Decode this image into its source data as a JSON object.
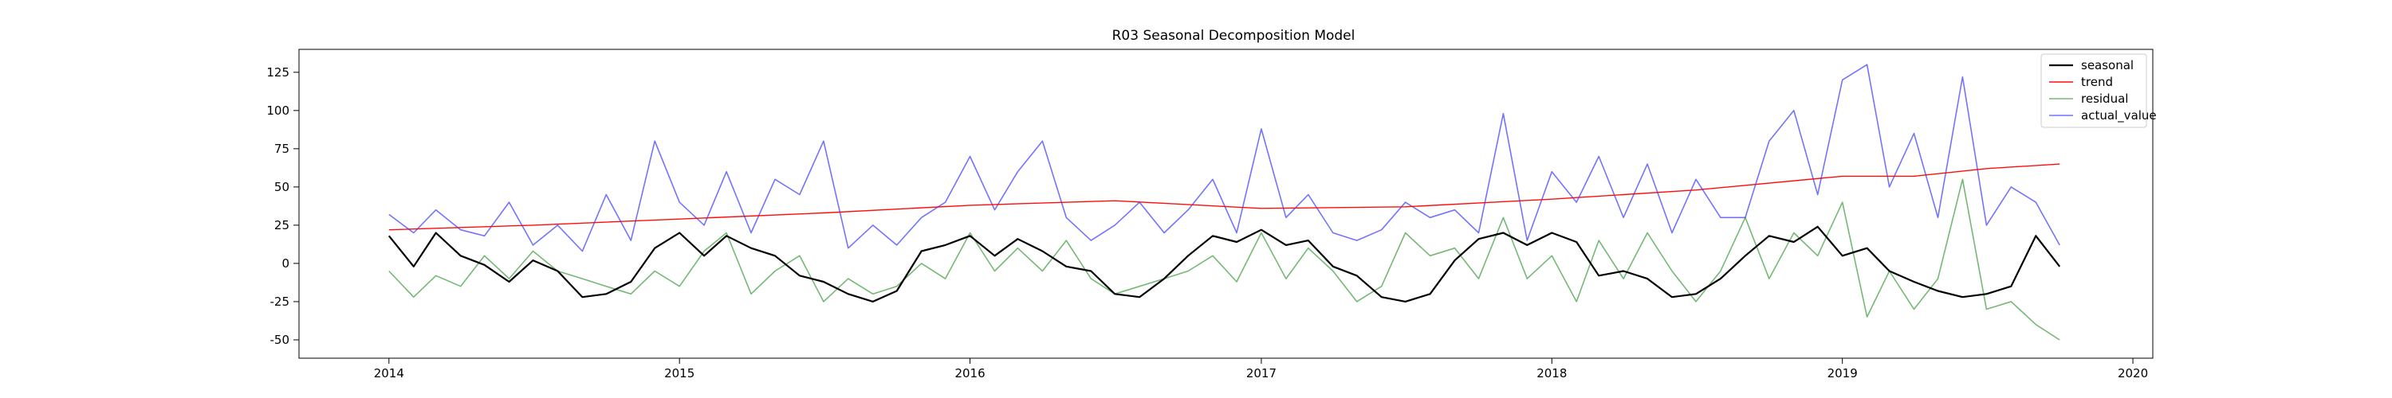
{
  "chart_data": {
    "type": "line",
    "title": "R03 Seasonal Decomposition Model",
    "xlabel": "",
    "ylabel": "",
    "x_ticks": [
      "2014",
      "2015",
      "2016",
      "2017",
      "2018",
      "2019",
      "2020"
    ],
    "y_ticks": [
      -50,
      -25,
      0,
      25,
      50,
      75,
      100,
      125
    ],
    "xlim": [
      "2013-09-10",
      "2020-01-26"
    ],
    "ylim": [
      -62,
      140
    ],
    "grid": false,
    "legend_position": "top-right",
    "series": [
      {
        "name": "seasonal",
        "color": "#000000",
        "x": [
          "2014-01-01",
          "2014-02-01",
          "2014-03-01",
          "2014-04-01",
          "2014-05-01",
          "2014-06-01",
          "2014-07-01",
          "2014-08-01",
          "2014-09-01",
          "2014-10-01",
          "2014-11-01",
          "2014-12-01",
          "2015-01-01",
          "2015-02-01",
          "2015-03-01",
          "2015-04-01",
          "2015-05-01",
          "2015-06-01",
          "2015-07-01",
          "2015-08-01",
          "2015-09-01",
          "2015-10-01",
          "2015-11-01",
          "2015-12-01",
          "2016-01-01",
          "2016-02-01",
          "2016-03-01",
          "2016-04-01",
          "2016-05-01",
          "2016-06-01",
          "2016-07-01",
          "2016-08-01",
          "2016-09-01",
          "2016-10-01",
          "2016-11-01",
          "2016-12-01",
          "2017-01-01",
          "2017-02-01",
          "2017-03-01",
          "2017-04-01",
          "2017-05-01",
          "2017-06-01",
          "2017-07-01",
          "2017-08-01",
          "2017-09-01",
          "2017-10-01",
          "2017-11-01",
          "2017-12-01",
          "2018-01-01",
          "2018-02-01",
          "2018-03-01",
          "2018-04-01",
          "2018-05-01",
          "2018-06-01",
          "2018-07-01",
          "2018-08-01",
          "2018-09-01",
          "2018-10-01",
          "2018-11-01",
          "2018-12-01",
          "2019-01-01",
          "2019-02-01",
          "2019-03-01",
          "2019-04-01",
          "2019-05-01",
          "2019-06-01",
          "2019-07-01",
          "2019-08-01",
          "2019-09-01",
          "2019-10-01"
        ],
        "values": [
          18,
          -2,
          20,
          5,
          -1,
          -12,
          2,
          -5,
          -22,
          -20,
          -12,
          10,
          20,
          5,
          18,
          10,
          5,
          -8,
          -12,
          -20,
          -25,
          -18,
          8,
          12,
          18,
          5,
          16,
          8,
          -2,
          -5,
          -20,
          -22,
          -10,
          5,
          18,
          14,
          22,
          12,
          15,
          -2,
          -8,
          -22,
          -25,
          -20,
          2,
          16,
          20,
          12,
          20,
          14,
          -8,
          -5,
          -10,
          -22,
          -20,
          -10,
          5,
          18,
          14,
          24,
          5,
          10,
          -5,
          -12,
          -18,
          -22,
          -20,
          -15,
          18,
          -2
        ]
      },
      {
        "name": "trend",
        "color": "#ff0000",
        "x": [
          "2014-01-01",
          "2014-07-01",
          "2015-01-01",
          "2015-07-01",
          "2016-01-01",
          "2016-07-01",
          "2017-01-01",
          "2017-07-01",
          "2018-01-01",
          "2018-07-01",
          "2019-01-01",
          "2019-04-01",
          "2019-07-01",
          "2019-10-01"
        ],
        "values": [
          22,
          25,
          29,
          33,
          38,
          41,
          36,
          37,
          42,
          48,
          57,
          57,
          62,
          65
        ]
      },
      {
        "name": "residual",
        "color": "#008000",
        "x": [
          "2014-01-01",
          "2014-02-01",
          "2014-03-01",
          "2014-04-01",
          "2014-05-01",
          "2014-06-01",
          "2014-07-01",
          "2014-08-01",
          "2014-09-01",
          "2014-10-01",
          "2014-11-01",
          "2014-12-01",
          "2015-01-01",
          "2015-02-01",
          "2015-03-01",
          "2015-04-01",
          "2015-05-01",
          "2015-06-01",
          "2015-07-01",
          "2015-08-01",
          "2015-09-01",
          "2015-10-01",
          "2015-11-01",
          "2015-12-01",
          "2016-01-01",
          "2016-02-01",
          "2016-03-01",
          "2016-04-01",
          "2016-05-01",
          "2016-06-01",
          "2016-07-01",
          "2016-08-01",
          "2016-09-01",
          "2016-10-01",
          "2016-11-01",
          "2016-12-01",
          "2017-01-01",
          "2017-02-01",
          "2017-03-01",
          "2017-04-01",
          "2017-05-01",
          "2017-06-01",
          "2017-07-01",
          "2017-08-01",
          "2017-09-01",
          "2017-10-01",
          "2017-11-01",
          "2017-12-01",
          "2018-01-01",
          "2018-02-01",
          "2018-03-01",
          "2018-04-01",
          "2018-05-01",
          "2018-06-01",
          "2018-07-01",
          "2018-08-01",
          "2018-09-01",
          "2018-10-01",
          "2018-11-01",
          "2018-12-01",
          "2019-01-01",
          "2019-02-01",
          "2019-03-01",
          "2019-04-01",
          "2019-05-01",
          "2019-06-01",
          "2019-07-01",
          "2019-08-01",
          "2019-09-01",
          "2019-10-01"
        ],
        "values": [
          -5,
          -22,
          -8,
          -15,
          5,
          -10,
          8,
          -5,
          -10,
          -15,
          -20,
          -5,
          -15,
          8,
          20,
          -20,
          -5,
          5,
          -25,
          -10,
          -20,
          -15,
          0,
          -10,
          20,
          -5,
          10,
          -5,
          15,
          -10,
          -20,
          -15,
          -10,
          -5,
          5,
          -12,
          20,
          -10,
          10,
          -5,
          -25,
          -15,
          20,
          5,
          10,
          -10,
          30,
          -10,
          5,
          -25,
          15,
          -10,
          20,
          -5,
          -25,
          -5,
          30,
          -10,
          20,
          5,
          40,
          -35,
          -5,
          -30,
          -10,
          55,
          -30,
          -25,
          -40,
          -50
        ]
      },
      {
        "name": "actual_value",
        "color": "#0000ff",
        "x": [
          "2014-01-01",
          "2014-02-01",
          "2014-03-01",
          "2014-04-01",
          "2014-05-01",
          "2014-06-01",
          "2014-07-01",
          "2014-08-01",
          "2014-09-01",
          "2014-10-01",
          "2014-11-01",
          "2014-12-01",
          "2015-01-01",
          "2015-02-01",
          "2015-03-01",
          "2015-04-01",
          "2015-05-01",
          "2015-06-01",
          "2015-07-01",
          "2015-08-01",
          "2015-09-01",
          "2015-10-01",
          "2015-11-01",
          "2015-12-01",
          "2016-01-01",
          "2016-02-01",
          "2016-03-01",
          "2016-04-01",
          "2016-05-01",
          "2016-06-01",
          "2016-07-01",
          "2016-08-01",
          "2016-09-01",
          "2016-10-01",
          "2016-11-01",
          "2016-12-01",
          "2017-01-01",
          "2017-02-01",
          "2017-03-01",
          "2017-04-01",
          "2017-05-01",
          "2017-06-01",
          "2017-07-01",
          "2017-08-01",
          "2017-09-01",
          "2017-10-01",
          "2017-11-01",
          "2017-12-01",
          "2018-01-01",
          "2018-02-01",
          "2018-03-01",
          "2018-04-01",
          "2018-05-01",
          "2018-06-01",
          "2018-07-01",
          "2018-08-01",
          "2018-09-01",
          "2018-10-01",
          "2018-11-01",
          "2018-12-01",
          "2019-01-01",
          "2019-02-01",
          "2019-03-01",
          "2019-04-01",
          "2019-05-01",
          "2019-06-01",
          "2019-07-01",
          "2019-08-01",
          "2019-09-01",
          "2019-10-01"
        ],
        "values": [
          32,
          20,
          35,
          22,
          18,
          40,
          12,
          25,
          8,
          45,
          15,
          80,
          40,
          25,
          60,
          20,
          55,
          45,
          80,
          10,
          25,
          12,
          30,
          40,
          70,
          35,
          60,
          80,
          30,
          15,
          25,
          40,
          20,
          35,
          55,
          20,
          88,
          30,
          45,
          20,
          15,
          22,
          40,
          30,
          35,
          20,
          98,
          15,
          60,
          40,
          70,
          30,
          65,
          20,
          55,
          30,
          30,
          80,
          100,
          45,
          120,
          130,
          50,
          85,
          30,
          122,
          25,
          50,
          40,
          12
        ]
      }
    ]
  }
}
